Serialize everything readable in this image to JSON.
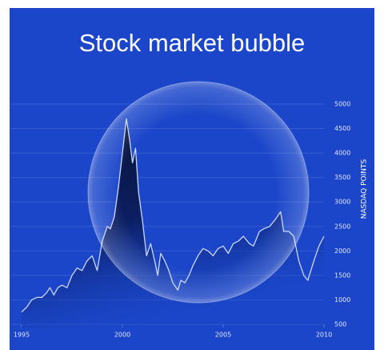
{
  "chart_data": {
    "type": "area",
    "title": "Stock market bubble",
    "y_label": "NASDAQ POINTS",
    "x": [
      1995.0,
      1995.25,
      1995.5,
      1995.75,
      1996.0,
      1996.25,
      1996.4,
      1996.6,
      1996.8,
      1997.0,
      1997.25,
      1997.5,
      1997.75,
      1998.0,
      1998.25,
      1998.5,
      1998.75,
      1999.0,
      1999.25,
      1999.4,
      1999.6,
      1999.8,
      2000.0,
      2000.2,
      2000.35,
      2000.5,
      2000.65,
      2000.8,
      2001.0,
      2001.2,
      2001.4,
      2001.6,
      2001.75,
      2001.9,
      2002.1,
      2002.3,
      2002.5,
      2002.75,
      2002.9,
      2003.1,
      2003.3,
      2003.5,
      2003.75,
      2004.0,
      2004.25,
      2004.5,
      2004.75,
      2005.0,
      2005.25,
      2005.5,
      2005.75,
      2006.0,
      2006.3,
      2006.5,
      2006.8,
      2007.0,
      2007.3,
      2007.6,
      2007.85,
      2008.0,
      2008.25,
      2008.5,
      2008.75,
      2009.0,
      2009.2,
      2009.5,
      2009.75,
      2010.0
    ],
    "values": [
      750,
      850,
      1000,
      1050,
      1050,
      1150,
      1250,
      1100,
      1250,
      1300,
      1250,
      1500,
      1650,
      1600,
      1800,
      1900,
      1600,
      2200,
      2500,
      2450,
      2700,
      3300,
      4000,
      4700,
      4300,
      3800,
      4100,
      3200,
      2600,
      1900,
      2150,
      1800,
      1500,
      1950,
      1800,
      1600,
      1350,
      1200,
      1400,
      1350,
      1500,
      1700,
      1900,
      2050,
      2000,
      1900,
      2050,
      2100,
      1950,
      2150,
      2200,
      2300,
      2150,
      2100,
      2400,
      2450,
      2500,
      2650,
      2800,
      2400,
      2400,
      2300,
      1800,
      1500,
      1400,
      1800,
      2100,
      2300
    ],
    "color": "#c9d6ff",
    "xlim": [
      1995,
      2010
    ],
    "xticks": [
      1995,
      2000,
      2005,
      2010
    ],
    "ylim": [
      500,
      5000
    ],
    "yticks": [
      500,
      1000,
      1500,
      2000,
      2500,
      3000,
      3500,
      4000,
      4500,
      5000
    ],
    "grid": true
  }
}
